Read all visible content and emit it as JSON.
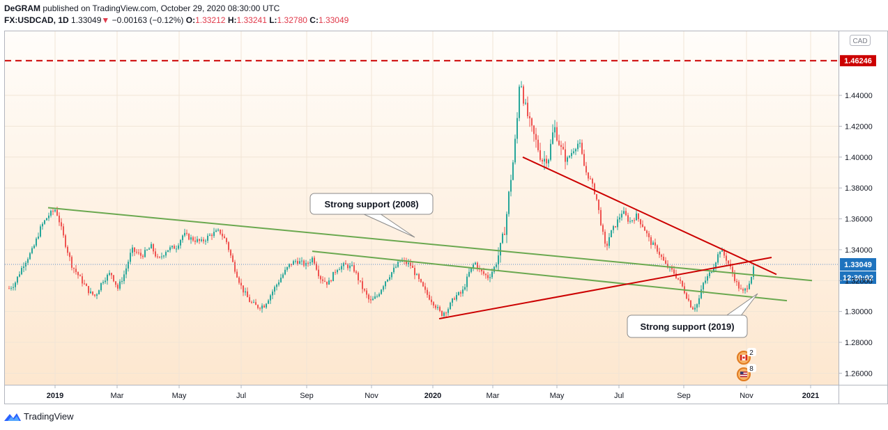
{
  "header": {
    "publisher": "DeGRAM",
    "published_text": "published on TradingView.com, October 29, 2020 08:30:00 UTC",
    "symbol": "FX:USDCAD, 1D",
    "last": "1.33049",
    "down_arrow": "▼",
    "change": "−0.00163 (−0.12%)",
    "o_label": "O:",
    "o_val": "1.33212",
    "h_label": "H:",
    "h_val": "1.33241",
    "l_label": "L:",
    "l_val": "1.32780",
    "c_label": "C:",
    "c_val": "1.33049"
  },
  "footer": {
    "brand": "TradingView"
  },
  "colors": {
    "bull": "#26a69a",
    "bear": "#ef5350",
    "trend_green": "#6aa84f",
    "trend_red": "#cc0000",
    "price_tag": "#1e73be",
    "level_red": "#cc0000"
  },
  "chart_data": {
    "type": "candlestick",
    "currency_label": "CAD",
    "y_ticks": [
      "1.26000",
      "1.28000",
      "1.30000",
      "1.32000",
      "1.34000",
      "1.36000",
      "1.38000",
      "1.40000",
      "1.42000",
      "1.44000"
    ],
    "ylim": [
      1.2525,
      1.4815
    ],
    "x_ticks": [
      "2019",
      "Mar",
      "May",
      "Jul",
      "Sep",
      "Nov",
      "2020",
      "Mar",
      "May",
      "Jul",
      "Sep",
      "Nov",
      "2021"
    ],
    "last_price_label": "1.33049",
    "countdown_label": "12:30:02",
    "resistance_level": 1.46246,
    "resistance_label": "1.46246",
    "price_path": [
      [
        0,
        1.315
      ],
      [
        8,
        1.318
      ],
      [
        20,
        1.33
      ],
      [
        34,
        1.34
      ],
      [
        46,
        1.355
      ],
      [
        56,
        1.362
      ],
      [
        66,
        1.366
      ],
      [
        70,
        1.362
      ],
      [
        80,
        1.345
      ],
      [
        90,
        1.33
      ],
      [
        104,
        1.32
      ],
      [
        116,
        1.312
      ],
      [
        124,
        1.31
      ],
      [
        134,
        1.32
      ],
      [
        146,
        1.325
      ],
      [
        156,
        1.315
      ],
      [
        166,
        1.325
      ],
      [
        176,
        1.34
      ],
      [
        190,
        1.336
      ],
      [
        204,
        1.342
      ],
      [
        214,
        1.333
      ],
      [
        226,
        1.34
      ],
      [
        240,
        1.342
      ],
      [
        250,
        1.35
      ],
      [
        262,
        1.347
      ],
      [
        276,
        1.345
      ],
      [
        290,
        1.35
      ],
      [
        302,
        1.352
      ],
      [
        312,
        1.345
      ],
      [
        322,
        1.33
      ],
      [
        334,
        1.315
      ],
      [
        346,
        1.306
      ],
      [
        356,
        1.303
      ],
      [
        366,
        1.304
      ],
      [
        378,
        1.313
      ],
      [
        390,
        1.322
      ],
      [
        402,
        1.33
      ],
      [
        412,
        1.333
      ],
      [
        426,
        1.33
      ],
      [
        436,
        1.335
      ],
      [
        446,
        1.322
      ],
      [
        458,
        1.318
      ],
      [
        470,
        1.328
      ],
      [
        482,
        1.33
      ],
      [
        494,
        1.328
      ],
      [
        506,
        1.316
      ],
      [
        518,
        1.306
      ],
      [
        528,
        1.31
      ],
      [
        540,
        1.32
      ],
      [
        550,
        1.326
      ],
      [
        562,
        1.333
      ],
      [
        576,
        1.33
      ],
      [
        588,
        1.32
      ],
      [
        598,
        1.312
      ],
      [
        610,
        1.305
      ],
      [
        620,
        1.298
      ],
      [
        630,
        1.302
      ],
      [
        640,
        1.31
      ],
      [
        650,
        1.312
      ],
      [
        660,
        1.325
      ],
      [
        668,
        1.332
      ],
      [
        676,
        1.326
      ],
      [
        688,
        1.322
      ],
      [
        698,
        1.33
      ],
      [
        706,
        1.343
      ],
      [
        712,
        1.355
      ],
      [
        718,
        1.38
      ],
      [
        724,
        1.4
      ],
      [
        729,
        1.425
      ],
      [
        733,
        1.455
      ],
      [
        737,
        1.44
      ],
      [
        742,
        1.43
      ],
      [
        748,
        1.42
      ],
      [
        756,
        1.41
      ],
      [
        764,
        1.398
      ],
      [
        774,
        1.4
      ],
      [
        782,
        1.42
      ],
      [
        792,
        1.405
      ],
      [
        800,
        1.398
      ],
      [
        810,
        1.405
      ],
      [
        818,
        1.41
      ],
      [
        826,
        1.392
      ],
      [
        834,
        1.385
      ],
      [
        842,
        1.375
      ],
      [
        848,
        1.36
      ],
      [
        856,
        1.34
      ],
      [
        862,
        1.35
      ],
      [
        870,
        1.356
      ],
      [
        880,
        1.365
      ],
      [
        890,
        1.358
      ],
      [
        900,
        1.362
      ],
      [
        910,
        1.355
      ],
      [
        920,
        1.345
      ],
      [
        930,
        1.34
      ],
      [
        942,
        1.33
      ],
      [
        954,
        1.325
      ],
      [
        964,
        1.318
      ],
      [
        972,
        1.31
      ],
      [
        980,
        1.302
      ],
      [
        988,
        1.305
      ],
      [
        996,
        1.318
      ],
      [
        1006,
        1.325
      ],
      [
        1014,
        1.333
      ],
      [
        1020,
        1.34
      ],
      [
        1028,
        1.335
      ],
      [
        1036,
        1.327
      ],
      [
        1044,
        1.318
      ],
      [
        1052,
        1.312
      ],
      [
        1058,
        1.315
      ],
      [
        1064,
        1.322
      ],
      [
        1070,
        1.33
      ]
    ],
    "trendlines": [
      {
        "name": "support-2008",
        "color": "green",
        "from": [
          62,
          1.3672
        ],
        "to": [
          1158,
          1.32
        ]
      },
      {
        "name": "support-2019",
        "color": "green",
        "from": [
          441,
          1.339
        ],
        "to": [
          1122,
          1.307
        ]
      },
      {
        "name": "rising-red",
        "color": "red",
        "from": [
          623,
          1.2953
        ],
        "to": [
          1100,
          1.335
        ]
      },
      {
        "name": "falling-red",
        "color": "red",
        "from": [
          743,
          1.4
        ],
        "to": [
          1107,
          1.324
        ]
      }
    ],
    "annotations": [
      {
        "text": "Strong support (2008)"
      },
      {
        "text": "Strong support (2019)"
      }
    ],
    "event_badges": [
      {
        "flag": "CA",
        "count": "2"
      },
      {
        "flag": "US",
        "count": "8"
      }
    ]
  }
}
